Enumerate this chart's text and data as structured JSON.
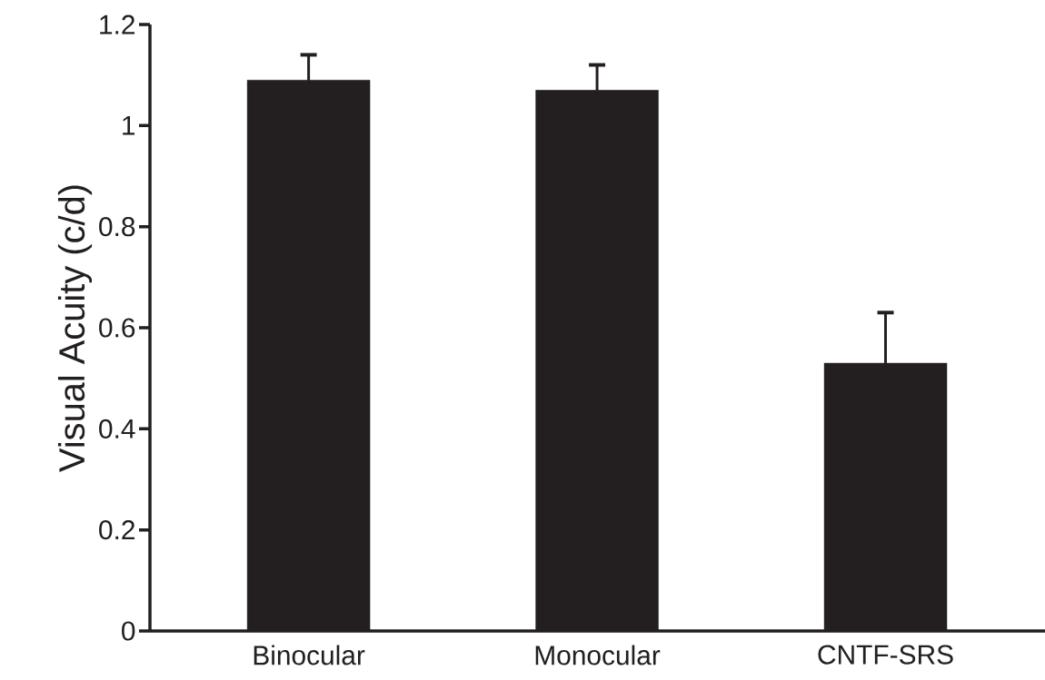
{
  "chart_data": {
    "type": "bar",
    "ylabel": "Visual Acuity (c/d)",
    "categories": [
      "Binocular",
      "Monocular",
      "CNTF-SRS"
    ],
    "values": [
      1.09,
      1.07,
      0.53
    ],
    "errors": [
      0.05,
      0.05,
      0.1
    ],
    "color": "#231f20",
    "ylim": [
      0,
      1.2
    ],
    "yticks": [
      0,
      0.2,
      0.4,
      0.6,
      0.8,
      1,
      1.2
    ],
    "grid": false
  }
}
